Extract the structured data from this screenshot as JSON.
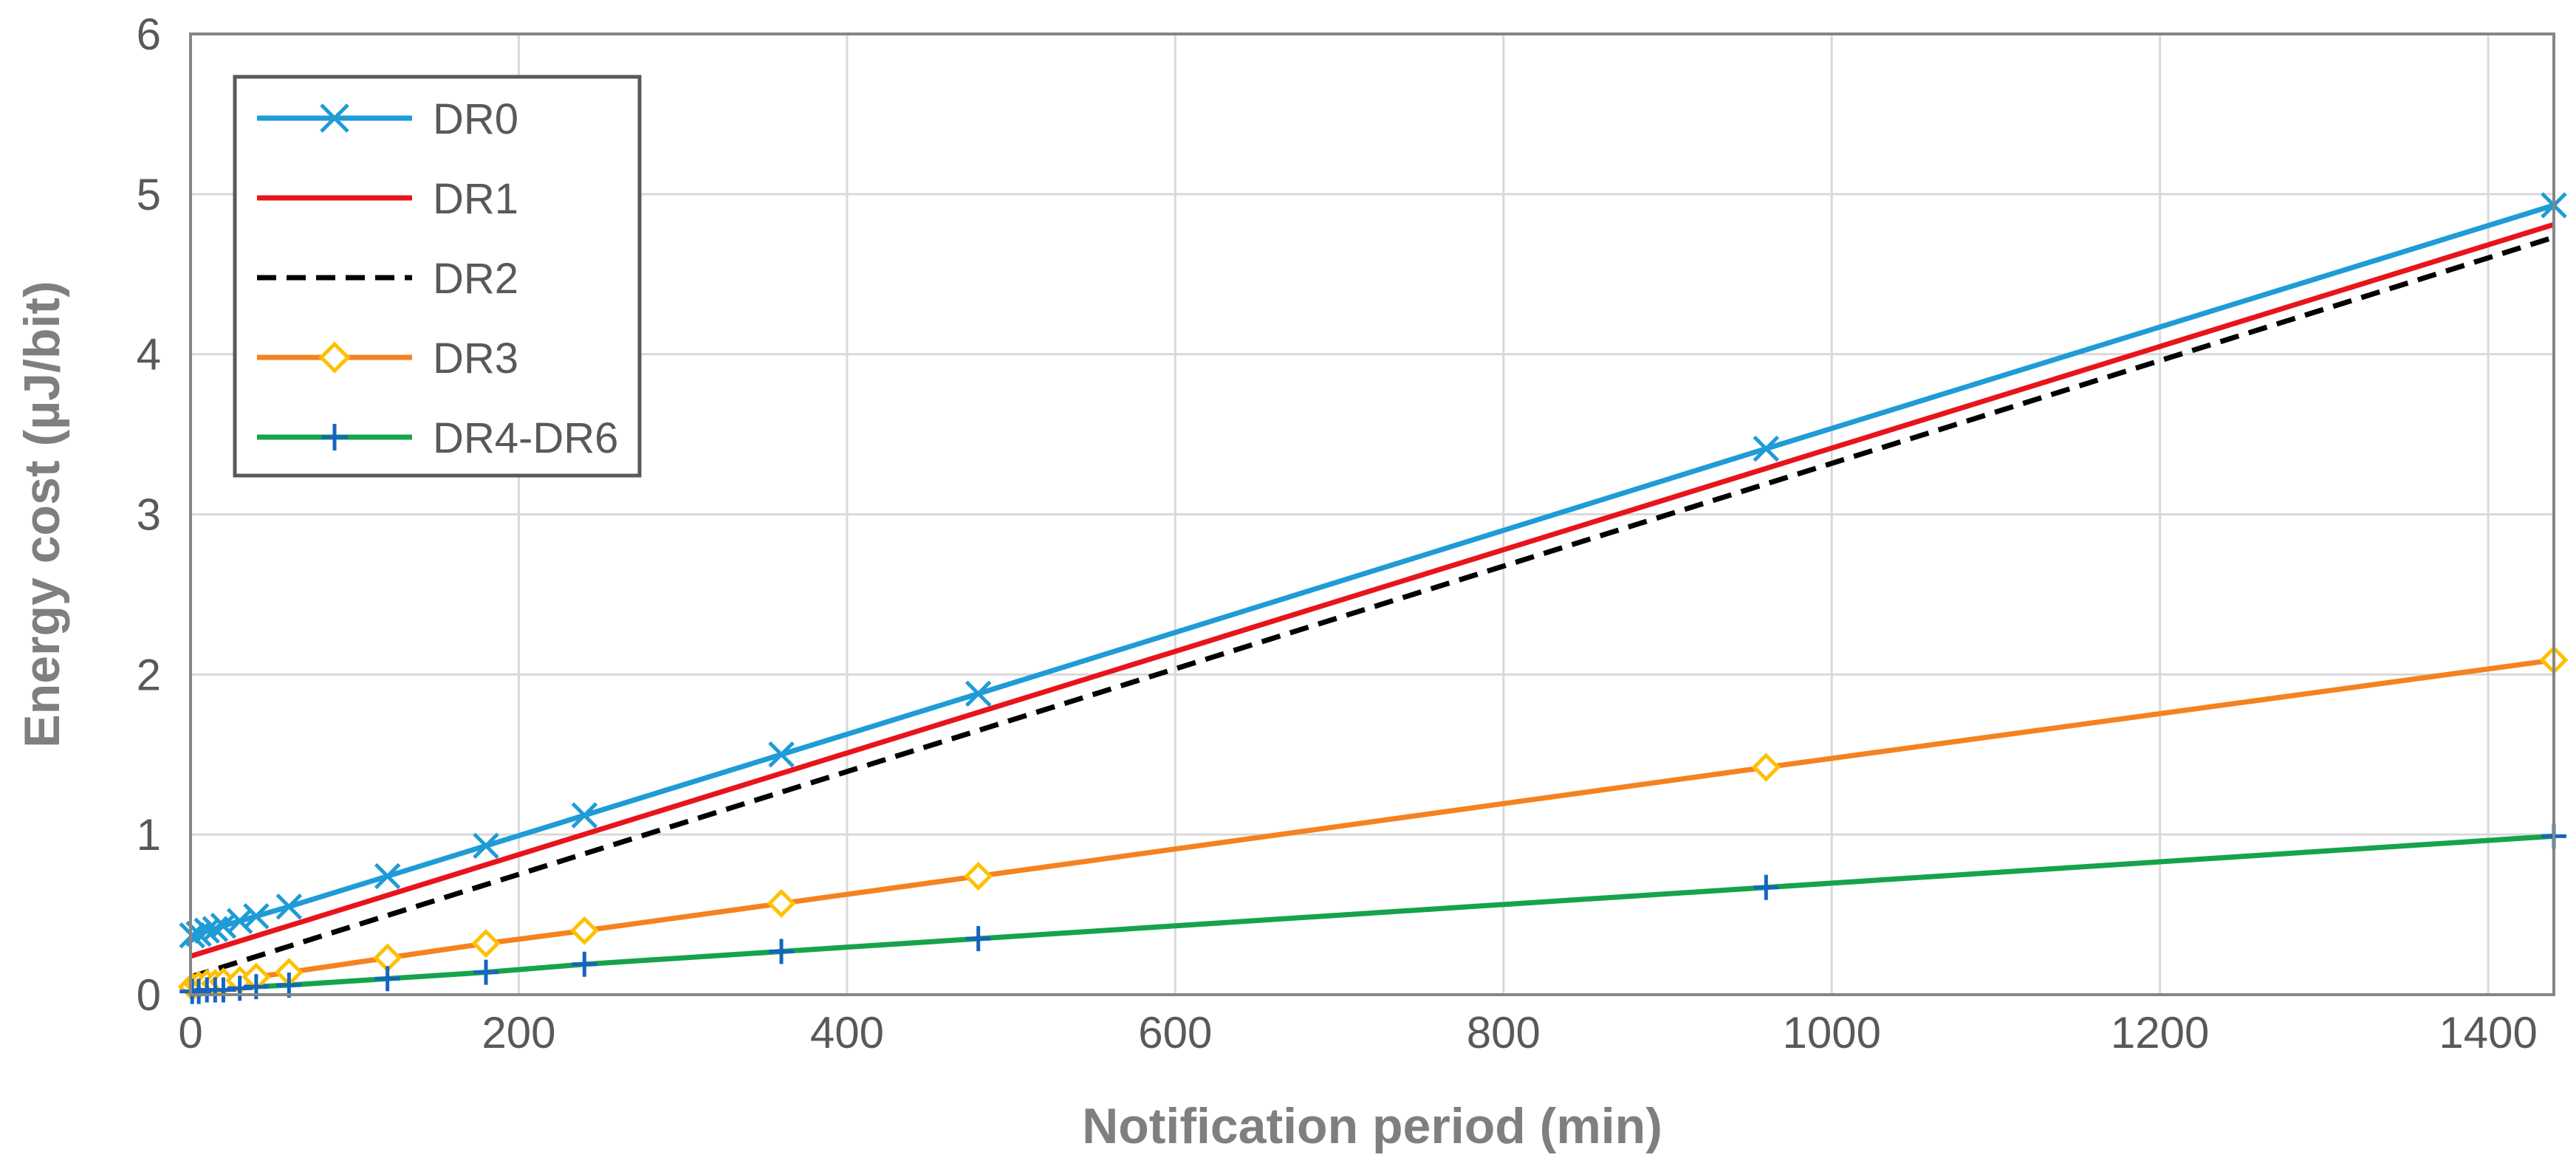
{
  "chart_data": {
    "type": "line",
    "xlabel": "Notification period  (min)",
    "ylabel": "Energy cost (µJ/bit)",
    "xlim": [
      0,
      1440
    ],
    "ylim": [
      0,
      6
    ],
    "xticks": [
      "0",
      "200",
      "400",
      "600",
      "800",
      "1000",
      "1200",
      "1400"
    ],
    "yticks": [
      "0",
      "1",
      "2",
      "3",
      "4",
      "5",
      "6"
    ],
    "grid": true,
    "legend_position": "top-left",
    "series": [
      {
        "name": "DR0",
        "color": "#1f9bd7",
        "marker": "x",
        "dash": "solid",
        "x": [
          1,
          5,
          10,
          15,
          20,
          30,
          40,
          60,
          120,
          180,
          240,
          360,
          480,
          960,
          1440
        ],
        "y": [
          0.37,
          0.38,
          0.4,
          0.41,
          0.43,
          0.46,
          0.49,
          0.55,
          0.74,
          0.93,
          1.12,
          1.5,
          1.88,
          3.41,
          4.93
        ]
      },
      {
        "name": "DR1",
        "color": "#e8141b",
        "marker": "none",
        "dash": "solid",
        "x": [
          0,
          1440
        ],
        "y": [
          0.24,
          4.81
        ]
      },
      {
        "name": "DR2",
        "color": "#000000",
        "marker": "none",
        "dash": "dashed",
        "x": [
          0,
          1440
        ],
        "y": [
          0.11,
          4.73
        ]
      },
      {
        "name": "DR3",
        "color": "#f58220",
        "marker": "diamond",
        "marker_color": "#ffc000",
        "dash": "solid",
        "x": [
          1,
          5,
          10,
          15,
          20,
          30,
          40,
          60,
          120,
          180,
          240,
          360,
          480,
          960,
          1440
        ],
        "y": [
          0.05,
          0.06,
          0.07,
          0.07,
          0.08,
          0.09,
          0.11,
          0.14,
          0.23,
          0.32,
          0.4,
          0.57,
          0.74,
          1.42,
          2.09
        ]
      },
      {
        "name": "DR4-DR6",
        "color": "#16a34a",
        "marker": "plus",
        "marker_color": "#1565c0",
        "dash": "solid",
        "x": [
          1,
          5,
          10,
          15,
          20,
          30,
          40,
          60,
          120,
          180,
          240,
          360,
          480,
          960,
          1440
        ],
        "y": [
          0.02,
          0.02,
          0.03,
          0.03,
          0.03,
          0.04,
          0.05,
          0.06,
          0.1,
          0.14,
          0.19,
          0.27,
          0.35,
          0.67,
          0.99
        ]
      }
    ]
  }
}
